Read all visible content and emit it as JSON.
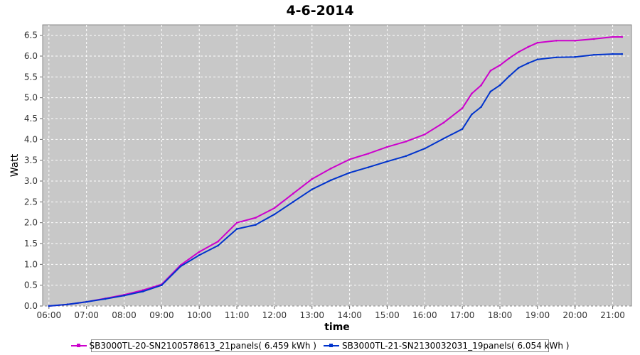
{
  "chart_data": {
    "type": "line",
    "title": "4-6-2014",
    "xlabel": "time",
    "ylabel": "Watt",
    "xlim": [
      "05:50",
      "21:30"
    ],
    "ylim": [
      0.0,
      6.75
    ],
    "x_ticks": [
      "06:00",
      "07:00",
      "08:00",
      "09:00",
      "10:00",
      "11:00",
      "12:00",
      "13:00",
      "14:00",
      "15:00",
      "16:00",
      "17:00",
      "18:00",
      "19:00",
      "20:00",
      "21:00"
    ],
    "y_ticks": [
      "0.0",
      "0.5",
      "1.0",
      "1.5",
      "2.0",
      "2.5",
      "3.0",
      "3.5",
      "4.0",
      "4.5",
      "5.0",
      "5.5",
      "6.0",
      "6.5"
    ],
    "grid": true,
    "legend_position": "bottom",
    "series": [
      {
        "name": "SB3000TL-20-SN2100578613_21panels( 6.459 kWh )",
        "color": "#cc00cc",
        "points": [
          [
            "06:00",
            0.0
          ],
          [
            "06:30",
            0.04
          ],
          [
            "07:00",
            0.1
          ],
          [
            "07:30",
            0.18
          ],
          [
            "08:00",
            0.27
          ],
          [
            "08:30",
            0.38
          ],
          [
            "09:00",
            0.52
          ],
          [
            "09:30",
            0.98
          ],
          [
            "10:00",
            1.3
          ],
          [
            "10:30",
            1.55
          ],
          [
            "11:00",
            2.0
          ],
          [
            "11:30",
            2.12
          ],
          [
            "12:00",
            2.35
          ],
          [
            "12:30",
            2.7
          ],
          [
            "13:00",
            3.05
          ],
          [
            "13:30",
            3.3
          ],
          [
            "14:00",
            3.52
          ],
          [
            "14:30",
            3.66
          ],
          [
            "15:00",
            3.82
          ],
          [
            "15:30",
            3.95
          ],
          [
            "16:00",
            4.12
          ],
          [
            "16:30",
            4.4
          ],
          [
            "17:00",
            4.75
          ],
          [
            "17:15",
            5.1
          ],
          [
            "17:30",
            5.3
          ],
          [
            "17:45",
            5.65
          ],
          [
            "18:00",
            5.78
          ],
          [
            "18:15",
            5.95
          ],
          [
            "18:30",
            6.1
          ],
          [
            "18:45",
            6.22
          ],
          [
            "19:00",
            6.32
          ],
          [
            "19:30",
            6.37
          ],
          [
            "20:00",
            6.37
          ],
          [
            "20:30",
            6.41
          ],
          [
            "21:00",
            6.46
          ],
          [
            "21:15",
            6.46
          ]
        ]
      },
      {
        "name": "SB3000TL-21-SN2130032031_19panels( 6.054 kWh )",
        "color": "#0033cc",
        "points": [
          [
            "06:00",
            0.0
          ],
          [
            "06:30",
            0.04
          ],
          [
            "07:00",
            0.1
          ],
          [
            "07:30",
            0.17
          ],
          [
            "08:00",
            0.25
          ],
          [
            "08:30",
            0.35
          ],
          [
            "09:00",
            0.5
          ],
          [
            "09:30",
            0.95
          ],
          [
            "10:00",
            1.22
          ],
          [
            "10:30",
            1.45
          ],
          [
            "11:00",
            1.85
          ],
          [
            "11:30",
            1.95
          ],
          [
            "12:00",
            2.2
          ],
          [
            "12:30",
            2.5
          ],
          [
            "13:00",
            2.8
          ],
          [
            "13:30",
            3.02
          ],
          [
            "14:00",
            3.2
          ],
          [
            "14:30",
            3.33
          ],
          [
            "15:00",
            3.47
          ],
          [
            "15:30",
            3.6
          ],
          [
            "16:00",
            3.78
          ],
          [
            "16:30",
            4.02
          ],
          [
            "17:00",
            4.25
          ],
          [
            "17:15",
            4.6
          ],
          [
            "17:30",
            4.78
          ],
          [
            "17:45",
            5.15
          ],
          [
            "18:00",
            5.3
          ],
          [
            "18:15",
            5.52
          ],
          [
            "18:30",
            5.72
          ],
          [
            "18:45",
            5.83
          ],
          [
            "19:00",
            5.92
          ],
          [
            "19:30",
            5.97
          ],
          [
            "20:00",
            5.98
          ],
          [
            "20:30",
            6.03
          ],
          [
            "21:00",
            6.05
          ],
          [
            "21:15",
            6.05
          ]
        ]
      }
    ]
  }
}
